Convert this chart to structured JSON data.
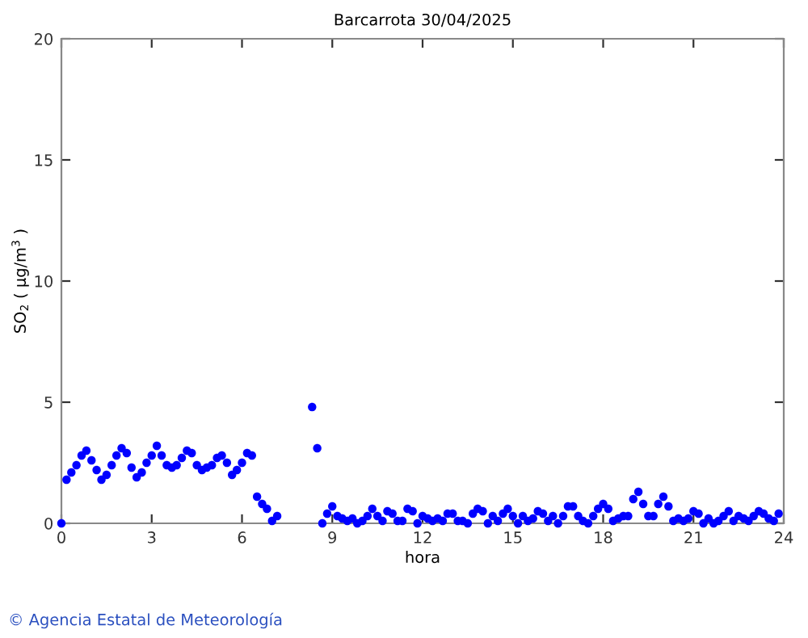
{
  "chart_data": {
    "type": "scatter",
    "title": "Barcarrota 30/04/2025",
    "xlabel": "hora",
    "ylabel": "SO$_{2}$ ( µg/m$^{3}$ )",
    "xlim": [
      0,
      24
    ],
    "xticks": [
      0,
      3,
      6,
      9,
      12,
      15,
      18,
      21,
      24
    ],
    "ylim": [
      0,
      20
    ],
    "yticks": [
      0,
      5,
      10,
      15,
      20
    ],
    "grid": false,
    "legend": false,
    "marker": "circle",
    "annotations": [
      "© Agencia Estatal de Meteorología"
    ],
    "series": [
      {
        "color": "#0000ff",
        "x": [
          0,
          0.17,
          0.33,
          0.5,
          0.67,
          0.83,
          1,
          1.17,
          1.33,
          1.5,
          1.67,
          1.83,
          2,
          2.17,
          2.33,
          2.5,
          2.67,
          2.83,
          3,
          3.17,
          3.33,
          3.5,
          3.67,
          3.83,
          4,
          4.17,
          4.33,
          4.5,
          4.67,
          4.83,
          5,
          5.17,
          5.33,
          5.5,
          5.67,
          5.83,
          6,
          6.17,
          6.33,
          6.5,
          6.67,
          6.83,
          7,
          7.17,
          8.33,
          8.5,
          8.67,
          8.83,
          9,
          9.17,
          9.33,
          9.5,
          9.67,
          9.83,
          10,
          10.17,
          10.33,
          10.5,
          10.67,
          10.83,
          11,
          11.17,
          11.33,
          11.5,
          11.67,
          11.83,
          12,
          12.17,
          12.33,
          12.5,
          12.67,
          12.83,
          13,
          13.17,
          13.33,
          13.5,
          13.67,
          13.83,
          14,
          14.17,
          14.33,
          14.5,
          14.67,
          14.83,
          15,
          15.17,
          15.33,
          15.5,
          15.67,
          15.83,
          16,
          16.17,
          16.33,
          16.5,
          16.67,
          16.83,
          17,
          17.17,
          17.33,
          17.5,
          17.67,
          17.83,
          18,
          18.17,
          18.33,
          18.5,
          18.67,
          18.83,
          19,
          19.17,
          19.33,
          19.5,
          19.67,
          19.83,
          20,
          20.17,
          20.33,
          20.5,
          20.67,
          20.83,
          21,
          21.17,
          21.33,
          21.5,
          21.67,
          21.83,
          22,
          22.17,
          22.33,
          22.5,
          22.67,
          22.83,
          23,
          23.17,
          23.33,
          23.5,
          23.67,
          23.83
        ],
        "values": [
          0,
          1.8,
          2.1,
          2.4,
          2.8,
          3.0,
          2.6,
          2.2,
          1.8,
          2.0,
          2.4,
          2.8,
          3.1,
          2.9,
          2.3,
          1.9,
          2.1,
          2.5,
          2.8,
          3.2,
          2.8,
          2.4,
          2.3,
          2.4,
          2.7,
          3.0,
          2.9,
          2.4,
          2.2,
          2.3,
          2.4,
          2.7,
          2.8,
          2.5,
          2.0,
          2.2,
          2.5,
          2.9,
          2.8,
          1.1,
          0.8,
          0.6,
          0.1,
          0.3,
          4.8,
          3.1,
          0,
          0.4,
          0.7,
          0.3,
          0.2,
          0.1,
          0.2,
          0,
          0.1,
          0.3,
          0.6,
          0.3,
          0.1,
          0.5,
          0.4,
          0.1,
          0.1,
          0.6,
          0.5,
          0,
          0.3,
          0.2,
          0.1,
          0.2,
          0.1,
          0.4,
          0.4,
          0.1,
          0.1,
          0,
          0.4,
          0.6,
          0.5,
          0,
          0.3,
          0.1,
          0.4,
          0.6,
          0.3,
          0,
          0.3,
          0.1,
          0.2,
          0.5,
          0.4,
          0.1,
          0.3,
          0,
          0.3,
          0.7,
          0.7,
          0.3,
          0.1,
          0,
          0.3,
          0.6,
          0.8,
          0.6,
          0.1,
          0.2,
          0.3,
          0.3,
          1.0,
          1.3,
          0.8,
          0.3,
          0.3,
          0.8,
          1.1,
          0.7,
          0.1,
          0.2,
          0.1,
          0.2,
          0.5,
          0.4,
          0,
          0.2,
          0,
          0.1,
          0.3,
          0.5,
          0.1,
          0.3,
          0.2,
          0.1,
          0.3,
          0.5,
          0.4,
          0.2,
          0.1,
          0.4
        ]
      }
    ]
  }
}
